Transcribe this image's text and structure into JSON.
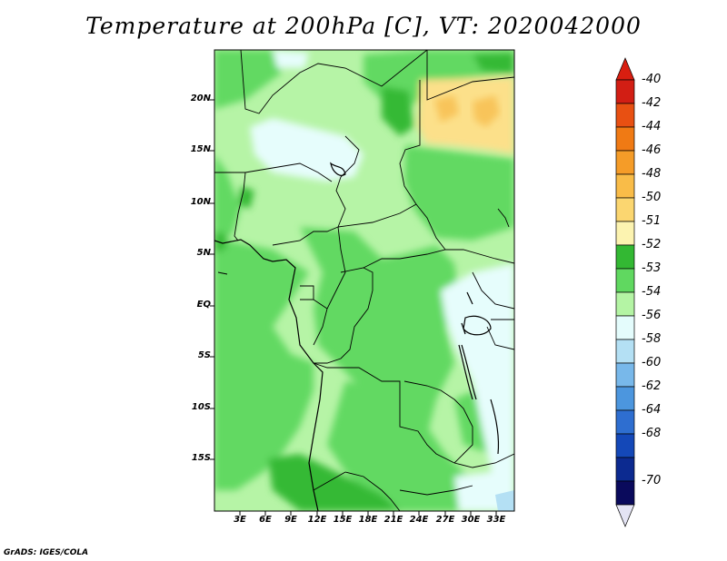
{
  "title": "Temperature at 200hPa [C], VT: 2020042000",
  "credit": "GrADS: IGES/COLA",
  "y_axis": [
    "20N",
    "15N",
    "10N",
    "5N",
    "EQ",
    "5S",
    "10S",
    "15S"
  ],
  "x_axis": [
    "3E",
    "6E",
    "9E",
    "12E",
    "15E",
    "18E",
    "21E",
    "24E",
    "27E",
    "30E",
    "33E"
  ],
  "colorbar": {
    "labels": [
      "-40",
      "-42",
      "-44",
      "-46",
      "-48",
      "-50",
      "-51",
      "-52",
      "-53",
      "-54",
      "-56",
      "-58",
      "-60",
      "-62",
      "-64",
      "-68",
      "-70"
    ],
    "colors": [
      "#d21e14",
      "#e85012",
      "#f07a14",
      "#f59c28",
      "#f9bc48",
      "#fbd670",
      "#fcf3b0",
      "#33b833",
      "#60d860",
      "#b4f4a4",
      "#e4fcfc",
      "#b4e0f4",
      "#78b8ea",
      "#4c96de",
      "#2e6ed0",
      "#1448b8",
      "#0c2a90",
      "#0a0a5c"
    ],
    "top_cap": "#d81e10",
    "bottom_cap": "#e4e4f4"
  }
}
